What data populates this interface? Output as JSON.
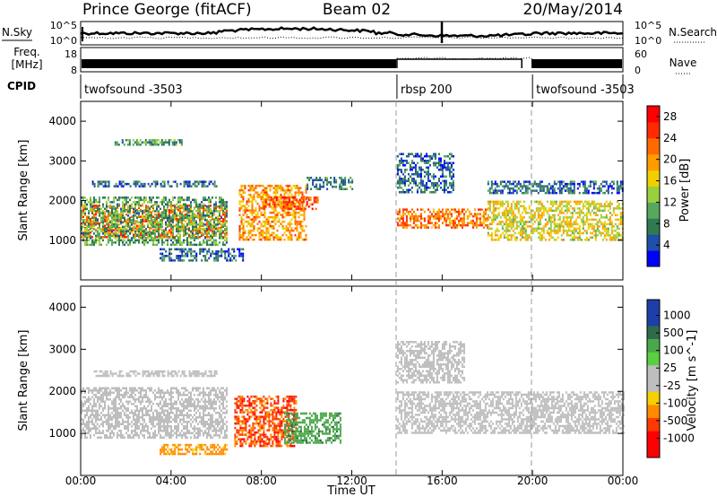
{
  "header": {
    "title": "Prince George (fitACF)",
    "beam": "Beam 02",
    "date": "20/May/2014"
  },
  "side_labels": {
    "nsky": "N.Sky",
    "nsearch": "N.Search",
    "freq": "Freq.",
    "mhz": "[MHz]",
    "nave": "Nave",
    "cpid": "CPID"
  },
  "strip_ticks": {
    "noise_left_top": "10^5",
    "noise_left_bottom": "10^0",
    "noise_right_top": "10^5",
    "noise_right_bottom": "10^0",
    "freq_left_top": "18",
    "freq_left_bottom": "8",
    "nave_right_top": "60",
    "nave_right_bottom": "0"
  },
  "cpid_segments": [
    {
      "label": "twofsound -3503",
      "start_hour": 0,
      "end_hour": 14.0
    },
    {
      "label": "rbsp 200",
      "start_hour": 14.0,
      "end_hour": 20.0
    },
    {
      "label": "twofsound -3503",
      "start_hour": 20.0,
      "end_hour": 24.0
    }
  ],
  "colors": {
    "power": [
      "#0000ff",
      "#1f4fa8",
      "#2f7a52",
      "#56a85e",
      "#9ad040",
      "#f0d000",
      "#ff9c00",
      "#ff6a00",
      "#ff2a00",
      "#ff0000"
    ],
    "velocity": {
      "v_pos_high": "#1c3fa8",
      "v_pos_mid": "#2f6b4a",
      "v_pos_low": "#4aa84a",
      "v_green": "#5ad040",
      "v_ground": "#bebebe",
      "v_neg_low": "#f5d000",
      "v_neg_mid": "#ff8c00",
      "v_neg_high": "#ff3a00",
      "v_neg_max": "#ff0000"
    }
  },
  "chart_data": [
    {
      "type": "heatmap",
      "panel": "power",
      "ylabel": "Slant Range [km]",
      "xlabel": "",
      "ylim": [
        0,
        4500
      ],
      "yticks": [
        "1000",
        "2000",
        "3000",
        "4000"
      ],
      "colorbar_label": "Power [dB]",
      "colorbar_ticks": [
        "4",
        "8",
        "12",
        "16",
        "20",
        "24",
        "28"
      ],
      "colorbar_range": [
        0,
        30
      ],
      "regions": [
        {
          "hour_start": 0.0,
          "hour_end": 6.5,
          "range_start": 1100,
          "range_end": 1900,
          "value": 22
        },
        {
          "hour_start": 0.0,
          "hour_end": 6.5,
          "range_start": 900,
          "range_end": 2100,
          "value": 10
        },
        {
          "hour_start": 0.5,
          "hour_end": 6.0,
          "range_start": 2350,
          "range_end": 2500,
          "value": 6
        },
        {
          "hour_start": 1.5,
          "hour_end": 4.5,
          "range_start": 3400,
          "range_end": 3550,
          "value": 10
        },
        {
          "hour_start": 3.5,
          "hour_end": 7.2,
          "range_start": 500,
          "range_end": 800,
          "value": 6
        },
        {
          "hour_start": 7.0,
          "hour_end": 10.0,
          "range_start": 1000,
          "range_end": 2400,
          "value": 20
        },
        {
          "hour_start": 8.0,
          "hour_end": 10.5,
          "range_start": 1800,
          "range_end": 2100,
          "value": 24
        },
        {
          "hour_start": 10.0,
          "hour_end": 12.0,
          "range_start": 2300,
          "range_end": 2600,
          "value": 8
        },
        {
          "hour_start": 14.0,
          "hour_end": 18.0,
          "range_start": 1300,
          "range_end": 1800,
          "value": 22
        },
        {
          "hour_start": 14.0,
          "hour_end": 16.5,
          "range_start": 2200,
          "range_end": 3200,
          "value": 6
        },
        {
          "hour_start": 18.0,
          "hour_end": 24.0,
          "range_start": 1000,
          "range_end": 2000,
          "value": 16
        },
        {
          "hour_start": 18.0,
          "hour_end": 24.0,
          "range_start": 2200,
          "range_end": 2500,
          "value": 6
        }
      ]
    },
    {
      "type": "heatmap",
      "panel": "velocity",
      "ylabel": "Slant Range [km]",
      "xlabel": "Time UT",
      "ylim": [
        0,
        4500
      ],
      "yticks": [
        "1000",
        "2000",
        "3000",
        "4000"
      ],
      "xticks": [
        "00:00",
        "04:00",
        "08:00",
        "12:00",
        "16:00",
        "20:00",
        "00:00"
      ],
      "colorbar_label": "Velocity [m s^-1]",
      "colorbar_ticks": [
        "1000",
        "500",
        "100",
        "25",
        "-25",
        "-100",
        "-500",
        "-1000"
      ],
      "regions": [
        {
          "hour_start": 0.0,
          "hour_end": 6.5,
          "range_start": 900,
          "range_end": 2100,
          "value": 0
        },
        {
          "hour_start": 0.5,
          "hour_end": 6.0,
          "range_start": 2350,
          "range_end": 2500,
          "value": 0
        },
        {
          "hour_start": 3.5,
          "hour_end": 6.5,
          "range_start": 500,
          "range_end": 750,
          "value": -150
        },
        {
          "hour_start": 6.8,
          "hour_end": 9.5,
          "range_start": 700,
          "range_end": 1900,
          "value": -600
        },
        {
          "hour_start": 9.0,
          "hour_end": 11.5,
          "range_start": 800,
          "range_end": 1500,
          "value": 150
        },
        {
          "hour_start": 14.0,
          "hour_end": 24.0,
          "range_start": 1000,
          "range_end": 2000,
          "value": 0
        },
        {
          "hour_start": 14.0,
          "hour_end": 17.0,
          "range_start": 2200,
          "range_end": 3200,
          "value": 0
        }
      ]
    }
  ]
}
